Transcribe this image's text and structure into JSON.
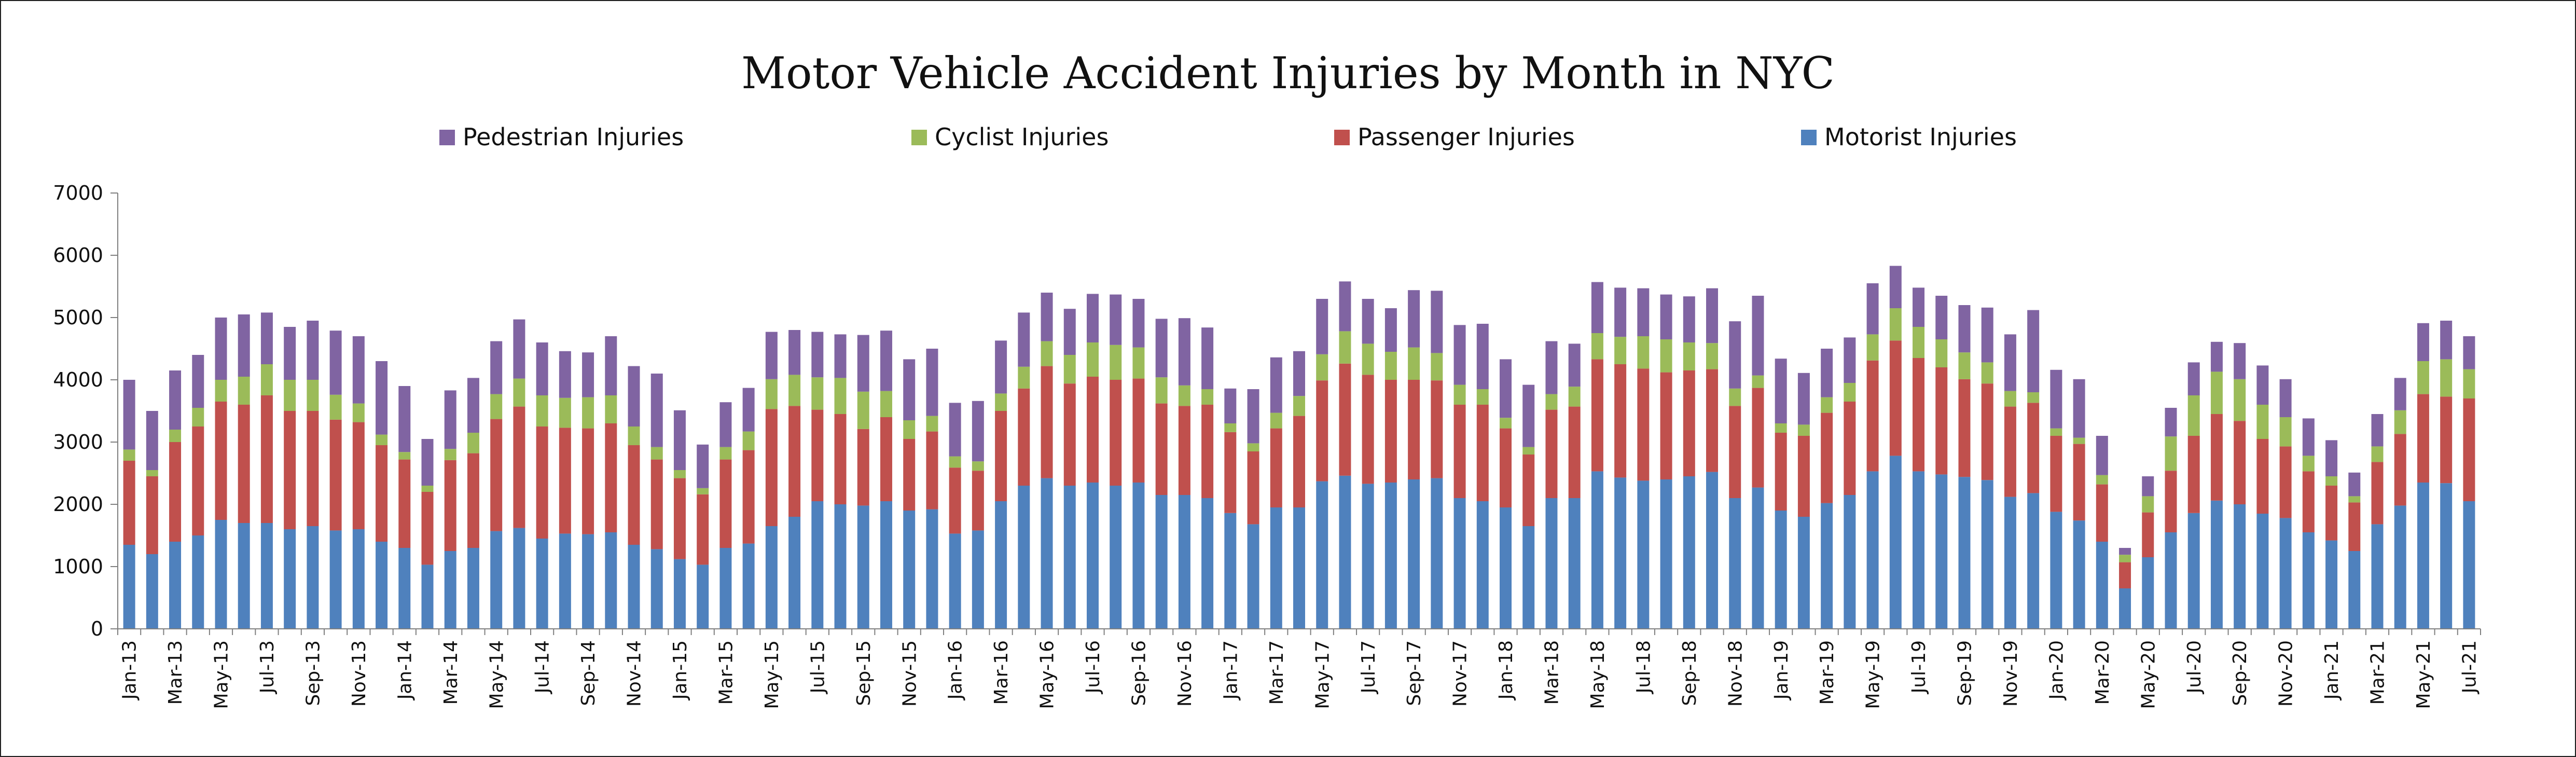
{
  "chart_data": {
    "type": "bar",
    "stacked": true,
    "title": "Motor Vehicle Accident Injuries by Month in NYC",
    "xlabel": "",
    "ylabel": "",
    "ylim": [
      0,
      7000
    ],
    "yticks": [
      0,
      1000,
      2000,
      3000,
      4000,
      5000,
      6000,
      7000
    ],
    "grid": false,
    "legend_position": "top",
    "legend_order": [
      "Pedestrian Injuries",
      "Cyclist Injuries",
      "Passenger Injuries",
      "Motorist Injuries"
    ],
    "categories": [
      "Jan-13",
      "Feb-13",
      "Mar-13",
      "Apr-13",
      "May-13",
      "Jun-13",
      "Jul-13",
      "Aug-13",
      "Sep-13",
      "Oct-13",
      "Nov-13",
      "Dec-13",
      "Jan-14",
      "Feb-14",
      "Mar-14",
      "Apr-14",
      "May-14",
      "Jun-14",
      "Jul-14",
      "Aug-14",
      "Sep-14",
      "Oct-14",
      "Nov-14",
      "Dec-14",
      "Jan-15",
      "Feb-15",
      "Mar-15",
      "Apr-15",
      "May-15",
      "Jun-15",
      "Jul-15",
      "Aug-15",
      "Sep-15",
      "Oct-15",
      "Nov-15",
      "Dec-15",
      "Jan-16",
      "Feb-16",
      "Mar-16",
      "Apr-16",
      "May-16",
      "Jun-16",
      "Jul-16",
      "Aug-16",
      "Sep-16",
      "Oct-16",
      "Nov-16",
      "Dec-16",
      "Jan-17",
      "Feb-17",
      "Mar-17",
      "Apr-17",
      "May-17",
      "Jun-17",
      "Jul-17",
      "Aug-17",
      "Sep-17",
      "Oct-17",
      "Nov-17",
      "Dec-17",
      "Jan-18",
      "Feb-18",
      "Mar-18",
      "Apr-18",
      "May-18",
      "Jun-18",
      "Jul-18",
      "Aug-18",
      "Sep-18",
      "Oct-18",
      "Nov-18",
      "Dec-18",
      "Jan-19",
      "Feb-19",
      "Mar-19",
      "Apr-19",
      "May-19",
      "Jun-19",
      "Jul-19",
      "Aug-19",
      "Sep-19",
      "Oct-19",
      "Nov-19",
      "Dec-19",
      "Jan-20",
      "Feb-20",
      "Mar-20",
      "Apr-20",
      "May-20",
      "Jun-20",
      "Jul-20",
      "Aug-20",
      "Sep-20",
      "Oct-20",
      "Nov-20",
      "Dec-20",
      "Jan-21",
      "Feb-21",
      "Mar-21",
      "Apr-21",
      "May-21",
      "Jun-21",
      "Jul-21"
    ],
    "x_tick_labels_shown": [
      "Jan-13",
      "Mar-13",
      "May-13",
      "Jul-13",
      "Sep-13",
      "Nov-13",
      "Jan-14",
      "Mar-14",
      "May-14",
      "Jul-14",
      "Sep-14",
      "Nov-14",
      "Jan-15",
      "Mar-15",
      "May-15",
      "Jul-15",
      "Sep-15",
      "Nov-15",
      "Jan-16",
      "Mar-16",
      "May-16",
      "Jul-16",
      "Sep-16",
      "Nov-16",
      "Jan-17",
      "Mar-17",
      "May-17",
      "Jul-17",
      "Sep-17",
      "Nov-17",
      "Jan-18",
      "Mar-18",
      "May-18",
      "Jul-18",
      "Sep-18",
      "Nov-18",
      "Jan-19",
      "Mar-19",
      "May-19",
      "Jul-19",
      "Sep-19",
      "Nov-19",
      "Jan-20",
      "Mar-20",
      "May-20",
      "Jul-20",
      "Sep-20",
      "Nov-20",
      "Jan-21",
      "Mar-21",
      "May-21",
      "Jul-21"
    ],
    "series": [
      {
        "name": "Motorist Injuries",
        "color": "#4f81bd",
        "values": [
          1350,
          1200,
          1400,
          1500,
          1750,
          1700,
          1700,
          1600,
          1650,
          1580,
          1600,
          1400,
          1300,
          1030,
          1250,
          1300,
          1570,
          1620,
          1450,
          1530,
          1520,
          1550,
          1350,
          1280,
          1120,
          1030,
          1300,
          1370,
          1650,
          1800,
          2050,
          2000,
          1980,
          2050,
          1900,
          1920,
          1530,
          1580,
          2050,
          2300,
          2420,
          2300,
          2350,
          2300,
          2350,
          2150,
          2150,
          2100,
          1860,
          1680,
          1950,
          1950,
          2370,
          2460,
          2330,
          2350,
          2400,
          2420,
          2100,
          2050,
          1950,
          1650,
          2100,
          2100,
          2530,
          2430,
          2380,
          2400,
          2450,
          2520,
          2100,
          2270,
          1900,
          1800,
          2020,
          2150,
          2530,
          2780,
          2530,
          2480,
          2440,
          2390,
          2120,
          2180,
          1880,
          1740,
          1400,
          650,
          1150,
          1550,
          1860,
          2060,
          2000,
          1850,
          1780,
          1550,
          1420,
          1250,
          1680,
          1980,
          2350,
          2340,
          2050
        ]
      },
      {
        "name": "Passenger Injuries",
        "color": "#c0504d",
        "values": [
          1350,
          1250,
          1600,
          1750,
          1900,
          1900,
          2050,
          1900,
          1850,
          1780,
          1720,
          1550,
          1420,
          1170,
          1460,
          1520,
          1800,
          1950,
          1800,
          1700,
          1700,
          1750,
          1600,
          1440,
          1300,
          1130,
          1420,
          1500,
          1880,
          1780,
          1470,
          1450,
          1230,
          1350,
          1150,
          1250,
          1060,
          960,
          1450,
          1560,
          1800,
          1640,
          1700,
          1700,
          1670,
          1470,
          1430,
          1500,
          1300,
          1170,
          1270,
          1470,
          1620,
          1800,
          1750,
          1650,
          1600,
          1570,
          1500,
          1550,
          1270,
          1150,
          1420,
          1470,
          1800,
          1820,
          1800,
          1720,
          1700,
          1650,
          1480,
          1600,
          1250,
          1300,
          1450,
          1500,
          1780,
          1850,
          1820,
          1720,
          1570,
          1550,
          1450,
          1450,
          1220,
          1230,
          920,
          420,
          720,
          990,
          1240,
          1390,
          1340,
          1200,
          1150,
          980,
          880,
          780,
          1000,
          1150,
          1420,
          1390,
          1650
        ]
      },
      {
        "name": "Cyclist Injuries",
        "color": "#9bbb59",
        "values": [
          180,
          100,
          200,
          300,
          350,
          450,
          500,
          500,
          500,
          400,
          300,
          170,
          120,
          100,
          180,
          330,
          400,
          450,
          500,
          480,
          500,
          450,
          300,
          200,
          130,
          100,
          200,
          300,
          480,
          500,
          520,
          580,
          600,
          420,
          300,
          250,
          180,
          150,
          280,
          350,
          400,
          460,
          550,
          560,
          500,
          420,
          330,
          250,
          140,
          130,
          250,
          320,
          420,
          520,
          500,
          450,
          520,
          440,
          320,
          250,
          170,
          120,
          250,
          320,
          420,
          440,
          520,
          530,
          450,
          420,
          280,
          200,
          150,
          180,
          250,
          300,
          420,
          520,
          500,
          450,
          430,
          340,
          250,
          170,
          120,
          100,
          150,
          120,
          260,
          550,
          650,
          680,
          670,
          550,
          470,
          250,
          150,
          100,
          250,
          380,
          530,
          600,
          470
        ]
      },
      {
        "name": "Pedestrian Injuries",
        "color": "#8064a2",
        "values": [
          1120,
          950,
          950,
          850,
          1000,
          1000,
          830,
          850,
          950,
          1030,
          1080,
          1180,
          1060,
          750,
          940,
          880,
          850,
          950,
          850,
          750,
          720,
          950,
          970,
          1180,
          960,
          700,
          720,
          700,
          760,
          720,
          730,
          700,
          910,
          970,
          980,
          1080,
          860,
          970,
          850,
          870,
          780,
          740,
          780,
          810,
          780,
          940,
          1080,
          990,
          560,
          870,
          890,
          720,
          890,
          800,
          720,
          700,
          920,
          1000,
          960,
          1050,
          940,
          1000,
          850,
          690,
          820,
          790,
          770,
          720,
          740,
          880,
          1080,
          1280,
          1040,
          830,
          780,
          730,
          820,
          680,
          630,
          700,
          760,
          880,
          910,
          1320,
          940,
          940,
          630,
          110,
          320,
          460,
          530,
          480,
          580,
          630,
          610,
          600,
          580,
          380,
          520,
          520,
          610,
          620,
          530
        ]
      }
    ]
  }
}
